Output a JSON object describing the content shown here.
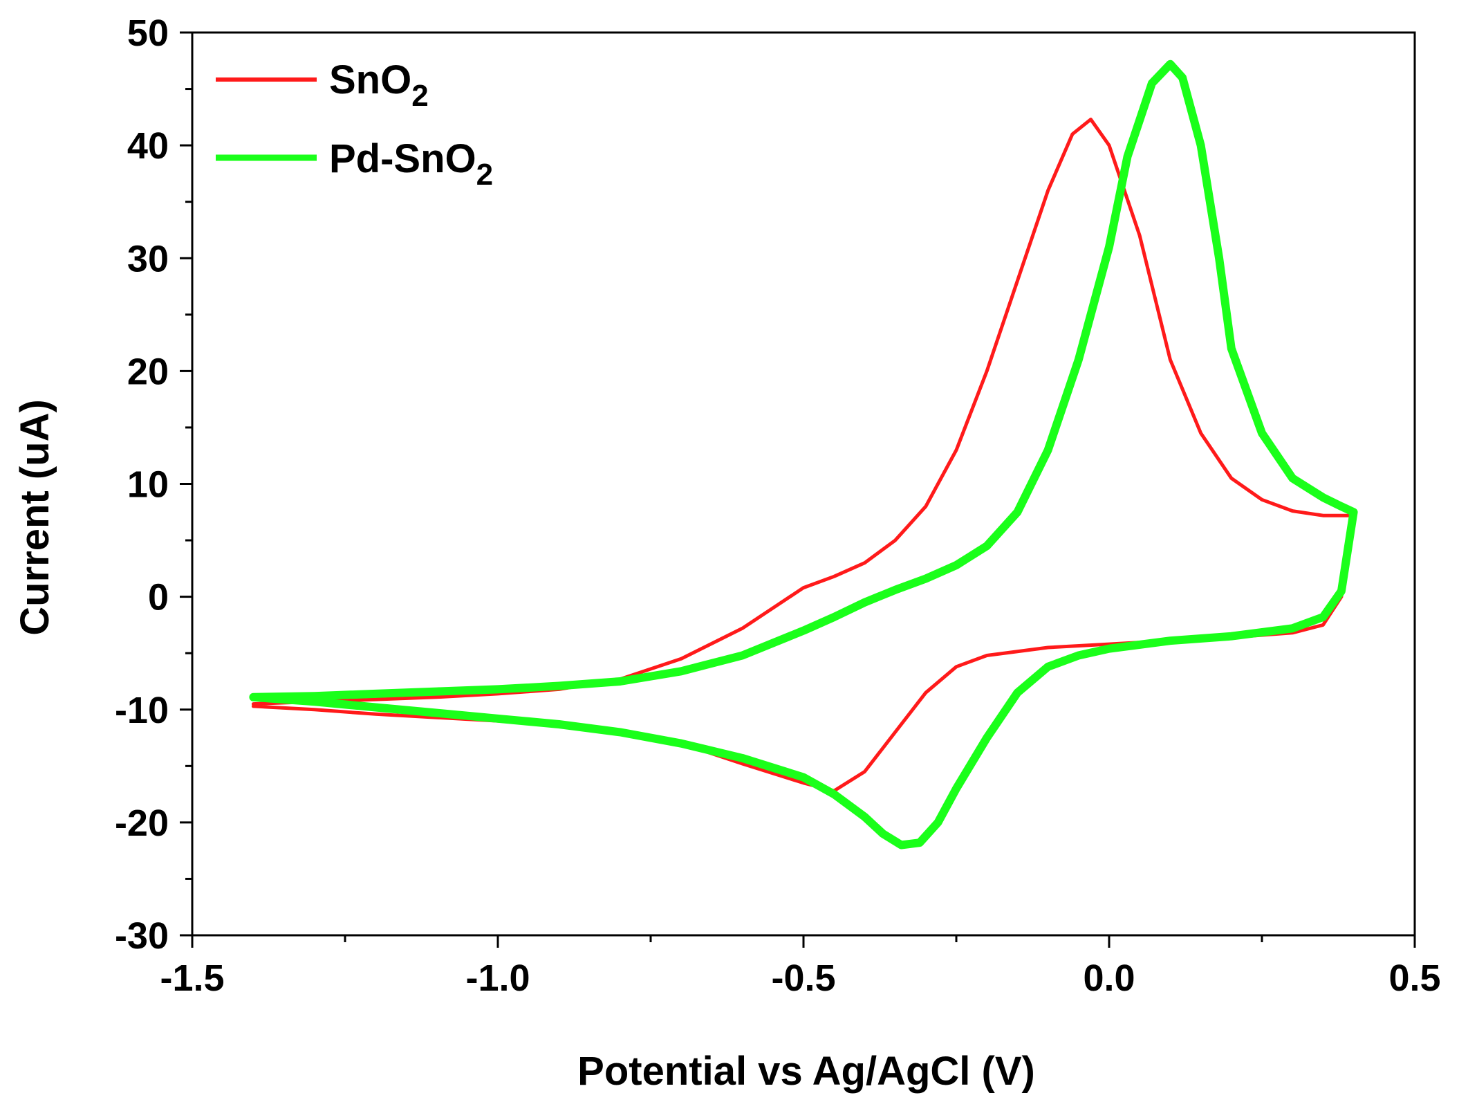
{
  "chart_data": {
    "type": "line",
    "title": "",
    "xlabel": "Potential vs Ag/AgCl (V)",
    "ylabel": "Current (uA)",
    "xlim": [
      -1.5,
      0.5
    ],
    "ylim": [
      -30,
      50
    ],
    "xticks": [
      -1.5,
      -1.0,
      -0.5,
      0.0,
      0.5
    ],
    "xtick_labels": [
      "-1.5",
      "-1.0",
      "-0.5",
      "0.0",
      "0.5"
    ],
    "yticks": [
      -30,
      -20,
      -10,
      0,
      10,
      20,
      30,
      40,
      50
    ],
    "ytick_labels": [
      "-30",
      "-20",
      "-10",
      "0",
      "10",
      "20",
      "30",
      "40",
      "50"
    ],
    "grid": false,
    "legend_position": "top-left",
    "series": [
      {
        "name": "SnO2",
        "legend_base": "SnO",
        "legend_sub": "2",
        "color": "#ff1a1a",
        "points": [
          [
            -1.4,
            -9.7
          ],
          [
            -1.3,
            -10.0
          ],
          [
            -1.2,
            -10.4
          ],
          [
            -1.1,
            -10.7
          ],
          [
            -1.0,
            -11.0
          ],
          [
            -0.9,
            -11.4
          ],
          [
            -0.8,
            -12.0
          ],
          [
            -0.7,
            -13.0
          ],
          [
            -0.6,
            -14.8
          ],
          [
            -0.5,
            -16.5
          ],
          [
            -0.45,
            -17.2
          ],
          [
            -0.4,
            -15.5
          ],
          [
            -0.35,
            -12.0
          ],
          [
            -0.3,
            -8.5
          ],
          [
            -0.25,
            -6.2
          ],
          [
            -0.2,
            -5.2
          ],
          [
            -0.1,
            -4.5
          ],
          [
            0.0,
            -4.2
          ],
          [
            0.1,
            -3.9
          ],
          [
            0.2,
            -3.6
          ],
          [
            0.3,
            -3.2
          ],
          [
            0.35,
            -2.5
          ],
          [
            0.38,
            0.0
          ],
          [
            0.4,
            7.2
          ],
          [
            0.35,
            7.2
          ],
          [
            0.3,
            7.6
          ],
          [
            0.25,
            8.6
          ],
          [
            0.2,
            10.5
          ],
          [
            0.15,
            14.5
          ],
          [
            0.1,
            21.0
          ],
          [
            0.05,
            32.0
          ],
          [
            0.0,
            40.0
          ],
          [
            -0.03,
            42.3
          ],
          [
            -0.06,
            41.0
          ],
          [
            -0.1,
            36.0
          ],
          [
            -0.15,
            28.0
          ],
          [
            -0.2,
            20.0
          ],
          [
            -0.25,
            13.0
          ],
          [
            -0.3,
            8.0
          ],
          [
            -0.35,
            5.0
          ],
          [
            -0.4,
            3.0
          ],
          [
            -0.45,
            1.8
          ],
          [
            -0.5,
            0.8
          ],
          [
            -0.55,
            -1.0
          ],
          [
            -0.6,
            -2.8
          ],
          [
            -0.7,
            -5.5
          ],
          [
            -0.8,
            -7.3
          ],
          [
            -0.9,
            -8.2
          ],
          [
            -1.0,
            -8.6
          ],
          [
            -1.1,
            -8.9
          ],
          [
            -1.2,
            -9.1
          ],
          [
            -1.3,
            -9.3
          ],
          [
            -1.4,
            -9.5
          ]
        ]
      },
      {
        "name": "Pd-SnO2",
        "legend_base": "Pd-SnO",
        "legend_sub": "2",
        "color": "#1aff1a",
        "points": [
          [
            -1.4,
            -8.9
          ],
          [
            -1.3,
            -9.3
          ],
          [
            -1.2,
            -9.8
          ],
          [
            -1.1,
            -10.3
          ],
          [
            -1.0,
            -10.8
          ],
          [
            -0.9,
            -11.3
          ],
          [
            -0.8,
            -12.0
          ],
          [
            -0.7,
            -13.0
          ],
          [
            -0.6,
            -14.3
          ],
          [
            -0.5,
            -16.0
          ],
          [
            -0.45,
            -17.5
          ],
          [
            -0.4,
            -19.5
          ],
          [
            -0.37,
            -21.0
          ],
          [
            -0.34,
            -22.0
          ],
          [
            -0.31,
            -21.8
          ],
          [
            -0.28,
            -20.0
          ],
          [
            -0.25,
            -17.0
          ],
          [
            -0.2,
            -12.5
          ],
          [
            -0.15,
            -8.5
          ],
          [
            -0.1,
            -6.2
          ],
          [
            -0.05,
            -5.2
          ],
          [
            0.0,
            -4.6
          ],
          [
            0.1,
            -3.9
          ],
          [
            0.2,
            -3.5
          ],
          [
            0.3,
            -2.8
          ],
          [
            0.35,
            -1.8
          ],
          [
            0.38,
            0.5
          ],
          [
            0.4,
            7.5
          ],
          [
            0.38,
            8.0
          ],
          [
            0.35,
            8.8
          ],
          [
            0.3,
            10.5
          ],
          [
            0.25,
            14.5
          ],
          [
            0.2,
            22.0
          ],
          [
            0.18,
            30.0
          ],
          [
            0.15,
            40.0
          ],
          [
            0.12,
            46.0
          ],
          [
            0.1,
            47.2
          ],
          [
            0.07,
            45.5
          ],
          [
            0.03,
            39.0
          ],
          [
            0.0,
            31.0
          ],
          [
            -0.05,
            21.0
          ],
          [
            -0.1,
            13.0
          ],
          [
            -0.15,
            7.5
          ],
          [
            -0.2,
            4.5
          ],
          [
            -0.25,
            2.8
          ],
          [
            -0.3,
            1.6
          ],
          [
            -0.35,
            0.6
          ],
          [
            -0.4,
            -0.5
          ],
          [
            -0.45,
            -1.8
          ],
          [
            -0.5,
            -3.0
          ],
          [
            -0.6,
            -5.2
          ],
          [
            -0.7,
            -6.6
          ],
          [
            -0.8,
            -7.5
          ],
          [
            -0.9,
            -7.9
          ],
          [
            -1.0,
            -8.2
          ],
          [
            -1.1,
            -8.4
          ],
          [
            -1.2,
            -8.6
          ],
          [
            -1.3,
            -8.8
          ],
          [
            -1.4,
            -8.9
          ]
        ]
      }
    ]
  }
}
